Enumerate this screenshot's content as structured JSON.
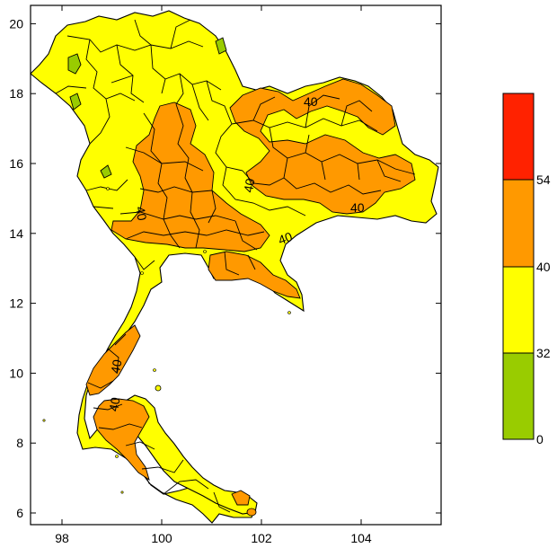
{
  "map": {
    "x_ticks": [
      "98",
      "100",
      "102",
      "104"
    ],
    "y_ticks": [
      "6",
      "8",
      "10",
      "12",
      "14",
      "16",
      "18",
      "20"
    ],
    "contour_labels": [
      "40",
      "40",
      "40",
      "40",
      "40",
      "40",
      "40",
      "40"
    ]
  },
  "legend": {
    "bands": [
      {
        "range": "54+",
        "color": "#ff2200"
      },
      {
        "range": "40-54",
        "color": "#ff9900"
      },
      {
        "range": "32-40",
        "color": "#ffff00"
      },
      {
        "range": "0-32",
        "color": "#99cc00"
      }
    ],
    "labels": [
      "54",
      "40",
      "32",
      "0"
    ]
  },
  "colors": {
    "yellow": "#ffff00",
    "orange": "#ff9900",
    "green": "#99cc00",
    "red": "#ff2200",
    "line": "#000000"
  }
}
